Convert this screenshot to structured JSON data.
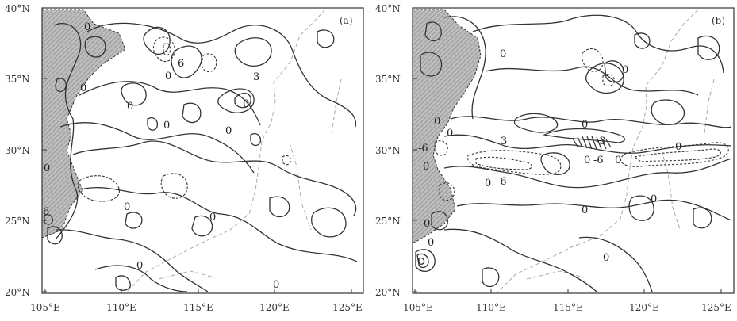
{
  "figure": {
    "panels": [
      {
        "label": "(a)",
        "lat_ticks": [
          "40°N",
          "35°N",
          "30°N",
          "25°N",
          "20°N"
        ],
        "lon_ticks": [
          "105°E",
          "110°E",
          "115°E",
          "120°E",
          "125°E"
        ],
        "contour_labels": [
          "0",
          "0",
          "0",
          "0",
          "0",
          "0",
          "0",
          "0",
          "0",
          "0",
          "6",
          "6",
          "3",
          "0",
          "0"
        ]
      },
      {
        "label": "(b)",
        "lat_ticks": [
          "40°N",
          "35°N",
          "30°N",
          "25°N",
          "20°N"
        ],
        "lon_ticks": [
          "105°E",
          "110°E",
          "115°E",
          "120°E",
          "125°E"
        ],
        "contour_labels": [
          "0",
          "0",
          "0",
          "0",
          "0",
          "0",
          "0",
          "0",
          "0",
          "0",
          "0",
          "-6",
          "3",
          "-3",
          "0",
          "-6",
          "0",
          "-6",
          "0",
          "0"
        ]
      }
    ]
  },
  "colors": {
    "shading": "#bdbdbd",
    "contour": "#333333",
    "coast": "#aaaaaa"
  }
}
